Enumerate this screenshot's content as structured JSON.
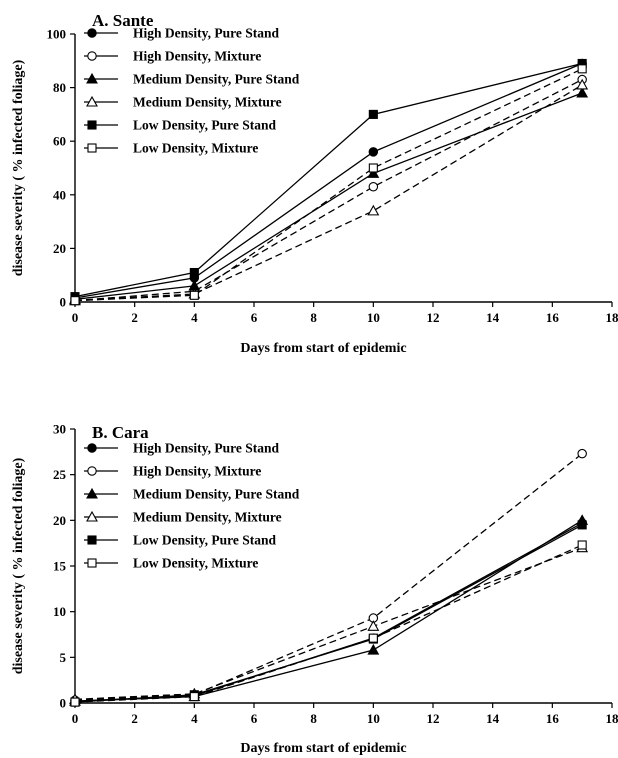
{
  "chart_data": [
    {
      "type": "line",
      "title": "A.  Sante",
      "xlabel": "Days from start of epidemic",
      "ylabel": "disease severity ( % infected foliage)",
      "xlim": [
        0,
        18
      ],
      "ylim": [
        0,
        100
      ],
      "xticks": [
        0,
        2,
        4,
        6,
        8,
        10,
        12,
        14,
        16,
        18
      ],
      "yticks": [
        0,
        20,
        40,
        60,
        80,
        100
      ],
      "x": [
        0,
        4,
        10,
        17
      ],
      "legend_position": "top-left",
      "series": [
        {
          "name": "High Density, Pure Stand",
          "marker": "circle-filled",
          "dash": "solid",
          "values": [
            1.5,
            9,
            56,
            89
          ]
        },
        {
          "name": "High Density, Mixture",
          "marker": "circle-open",
          "dash": "dashed",
          "values": [
            0.5,
            4,
            43,
            83
          ]
        },
        {
          "name": "Medium Density, Pure Stand",
          "marker": "triangle-filled",
          "dash": "solid",
          "values": [
            1,
            6,
            48,
            78
          ]
        },
        {
          "name": "Medium Density, Mixture",
          "marker": "triangle-open",
          "dash": "dashed",
          "values": [
            0.5,
            3,
            34,
            81
          ]
        },
        {
          "name": "Low Density, Pure Stand",
          "marker": "square-filled",
          "dash": "solid",
          "values": [
            2,
            11,
            70,
            89
          ]
        },
        {
          "name": "Low Density, Mixture",
          "marker": "square-open",
          "dash": "dashed",
          "values": [
            0.5,
            2.5,
            50,
            87
          ]
        }
      ]
    },
    {
      "type": "line",
      "title": "B. Cara",
      "xlabel": "Days from start of epidemic",
      "ylabel": "disease severity ( % infected foliage)",
      "xlim": [
        0,
        18
      ],
      "ylim": [
        0,
        30
      ],
      "xticks": [
        0,
        2,
        4,
        6,
        8,
        10,
        12,
        14,
        16,
        18
      ],
      "yticks": [
        0,
        5,
        10,
        15,
        20,
        25,
        30
      ],
      "x": [
        0,
        4,
        10,
        17
      ],
      "legend_position": "top-left",
      "series": [
        {
          "name": "High Density, Pure Stand",
          "marker": "circle-filled",
          "dash": "solid",
          "values": [
            0.2,
            0.8,
            7.1,
            19.7
          ]
        },
        {
          "name": "High Density, Mixture",
          "marker": "circle-open",
          "dash": "dashed",
          "values": [
            0.3,
            0.9,
            9.3,
            27.3
          ]
        },
        {
          "name": "Medium Density, Pure Stand",
          "marker": "triangle-filled",
          "dash": "solid",
          "values": [
            0.2,
            0.7,
            5.8,
            20
          ]
        },
        {
          "name": "Medium Density, Mixture",
          "marker": "triangle-open",
          "dash": "dashed",
          "values": [
            0.4,
            1.0,
            8.4,
            17
          ]
        },
        {
          "name": "Low Density, Pure Stand",
          "marker": "square-filled",
          "dash": "solid",
          "values": [
            0.1,
            0.9,
            7.0,
            19.5
          ]
        },
        {
          "name": "Low Density, Mixture",
          "marker": "square-open",
          "dash": "dashed",
          "values": [
            0.1,
            0.7,
            7.1,
            17.3
          ]
        }
      ]
    }
  ]
}
